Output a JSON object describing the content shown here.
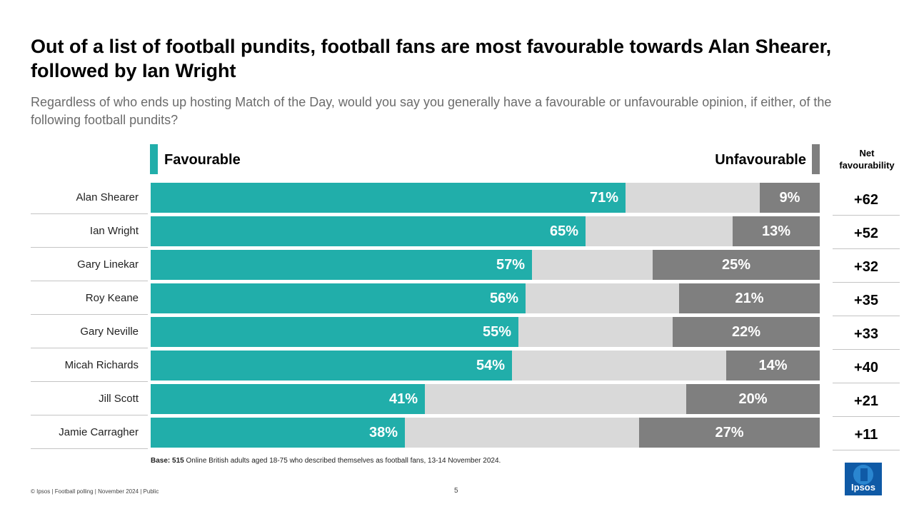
{
  "title": "Out of a list of football pundits, football fans are most favourable towards Alan Shearer, followed by Ian Wright",
  "subtitle": "Regardless of who ends up hosting Match of the Day, would you say you generally have a favourable or unfavourable opinion, if either, of the following football pundits?",
  "legend": {
    "favourable": "Favourable",
    "unfavourable": "Unfavourable"
  },
  "net_header": "Net favourability",
  "colors": {
    "favourable": "#21aeaa",
    "neutral": "#d9d9d9",
    "unfavourable": "#7f7f7f",
    "logo": "#0f5aa6"
  },
  "chart_data": {
    "type": "bar",
    "orientation": "horizontal",
    "stacked": true,
    "categories": [
      "Alan Shearer",
      "Ian Wright",
      "Gary Linekar",
      "Roy Keane",
      "Gary Neville",
      "Micah Richards",
      "Jill Scott",
      "Jamie Carragher"
    ],
    "series": [
      {
        "name": "Favourable",
        "values": [
          71,
          65,
          57,
          56,
          55,
          54,
          41,
          38
        ],
        "labels": [
          "71%",
          "65%",
          "57%",
          "56%",
          "55%",
          "54%",
          "41%",
          "38%"
        ]
      },
      {
        "name": "Unfavourable",
        "values": [
          9,
          13,
          25,
          21,
          22,
          14,
          20,
          27
        ],
        "labels": [
          "9%",
          "13%",
          "25%",
          "21%",
          "22%",
          "14%",
          "20%",
          "27%"
        ]
      }
    ],
    "net_favourability": [
      "+62",
      "+52",
      "+32",
      "+35",
      "+33",
      "+40",
      "+21",
      "+11"
    ],
    "xlim": [
      0,
      100
    ]
  },
  "base_label": "Base:",
  "base_number": "515",
  "base_text": "Online British adults aged 18-75 who described themselves as football fans, 13-14 November 2024.",
  "footer": "© Ipsos | Football polling | November 2024 | Public",
  "page_number": "5",
  "logo_text": "Ipsos"
}
